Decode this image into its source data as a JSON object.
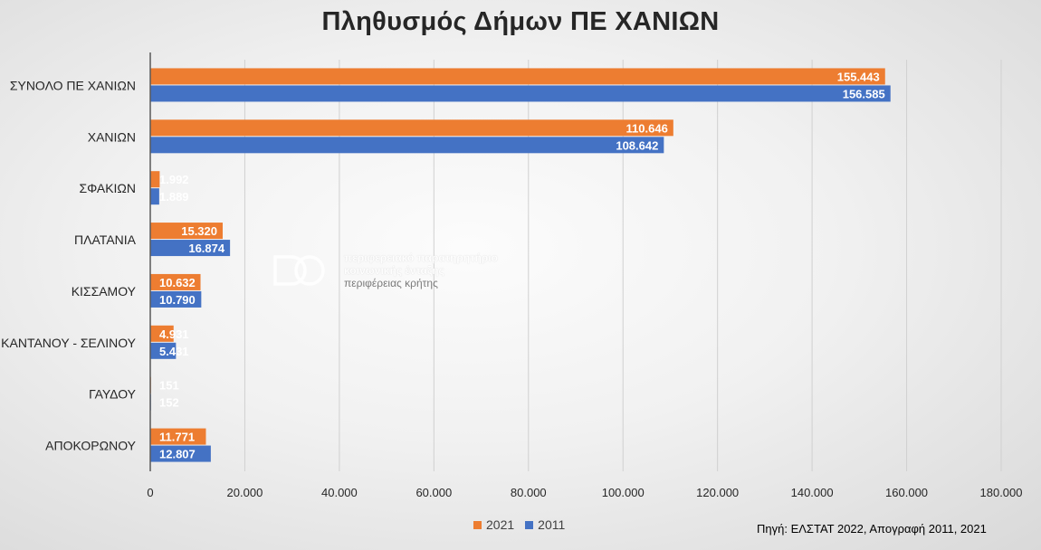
{
  "chart_data": {
    "type": "bar",
    "orientation": "horizontal",
    "title": "Πληθυσμός Δήμων ΠΕ ΧΑΝΙΩΝ",
    "categories": [
      "ΣΥΝΟΛΟ ΠΕ ΧΑΝΙΩΝ",
      "ΧΑΝΙΩΝ",
      "ΣΦΑΚΙΩΝ",
      "ΠΛΑΤΑΝΙΑ",
      "ΚΙΣΣΑΜΟΥ",
      "ΚΑΝΤΑΝΟΥ - ΣΕΛΙΝΟΥ",
      "ΓΑΥΔΟΥ",
      "ΑΠΟΚΟΡΩΝΟΥ"
    ],
    "series": [
      {
        "name": "2021",
        "color": "#ED7D31",
        "values": [
          155443,
          110646,
          1992,
          15320,
          10632,
          4931,
          151,
          11771
        ],
        "labels": [
          "155.443",
          "110.646",
          "1.992",
          "15.320",
          "10.632",
          "4.931",
          "151",
          "11.771"
        ]
      },
      {
        "name": "2011",
        "color": "#4472C4",
        "values": [
          156585,
          108642,
          1889,
          16874,
          10790,
          5431,
          152,
          12807
        ],
        "labels": [
          "156.585",
          "108.642",
          "1.889",
          "16.874",
          "10.790",
          "5.431",
          "152",
          "12.807"
        ]
      }
    ],
    "xlim": [
      0,
      180000
    ],
    "xticks": [
      0,
      20000,
      40000,
      60000,
      80000,
      100000,
      120000,
      140000,
      160000,
      180000
    ],
    "xtick_labels": [
      "0",
      "20.000",
      "40.000",
      "60.000",
      "80.000",
      "100.000",
      "120.000",
      "140.000",
      "160.000",
      "180.000"
    ],
    "grid": true,
    "legend_position": "bottom"
  },
  "source_note": "Πηγή: ΕΛΣΤΑΤ 2022, Απογραφή 2011, 2021",
  "watermark": {
    "line1": "περιφερειακό παρατηρητήριο",
    "line2": "κοινωνικής ένταξης",
    "line3": "περιφέρειας κρήτης"
  }
}
